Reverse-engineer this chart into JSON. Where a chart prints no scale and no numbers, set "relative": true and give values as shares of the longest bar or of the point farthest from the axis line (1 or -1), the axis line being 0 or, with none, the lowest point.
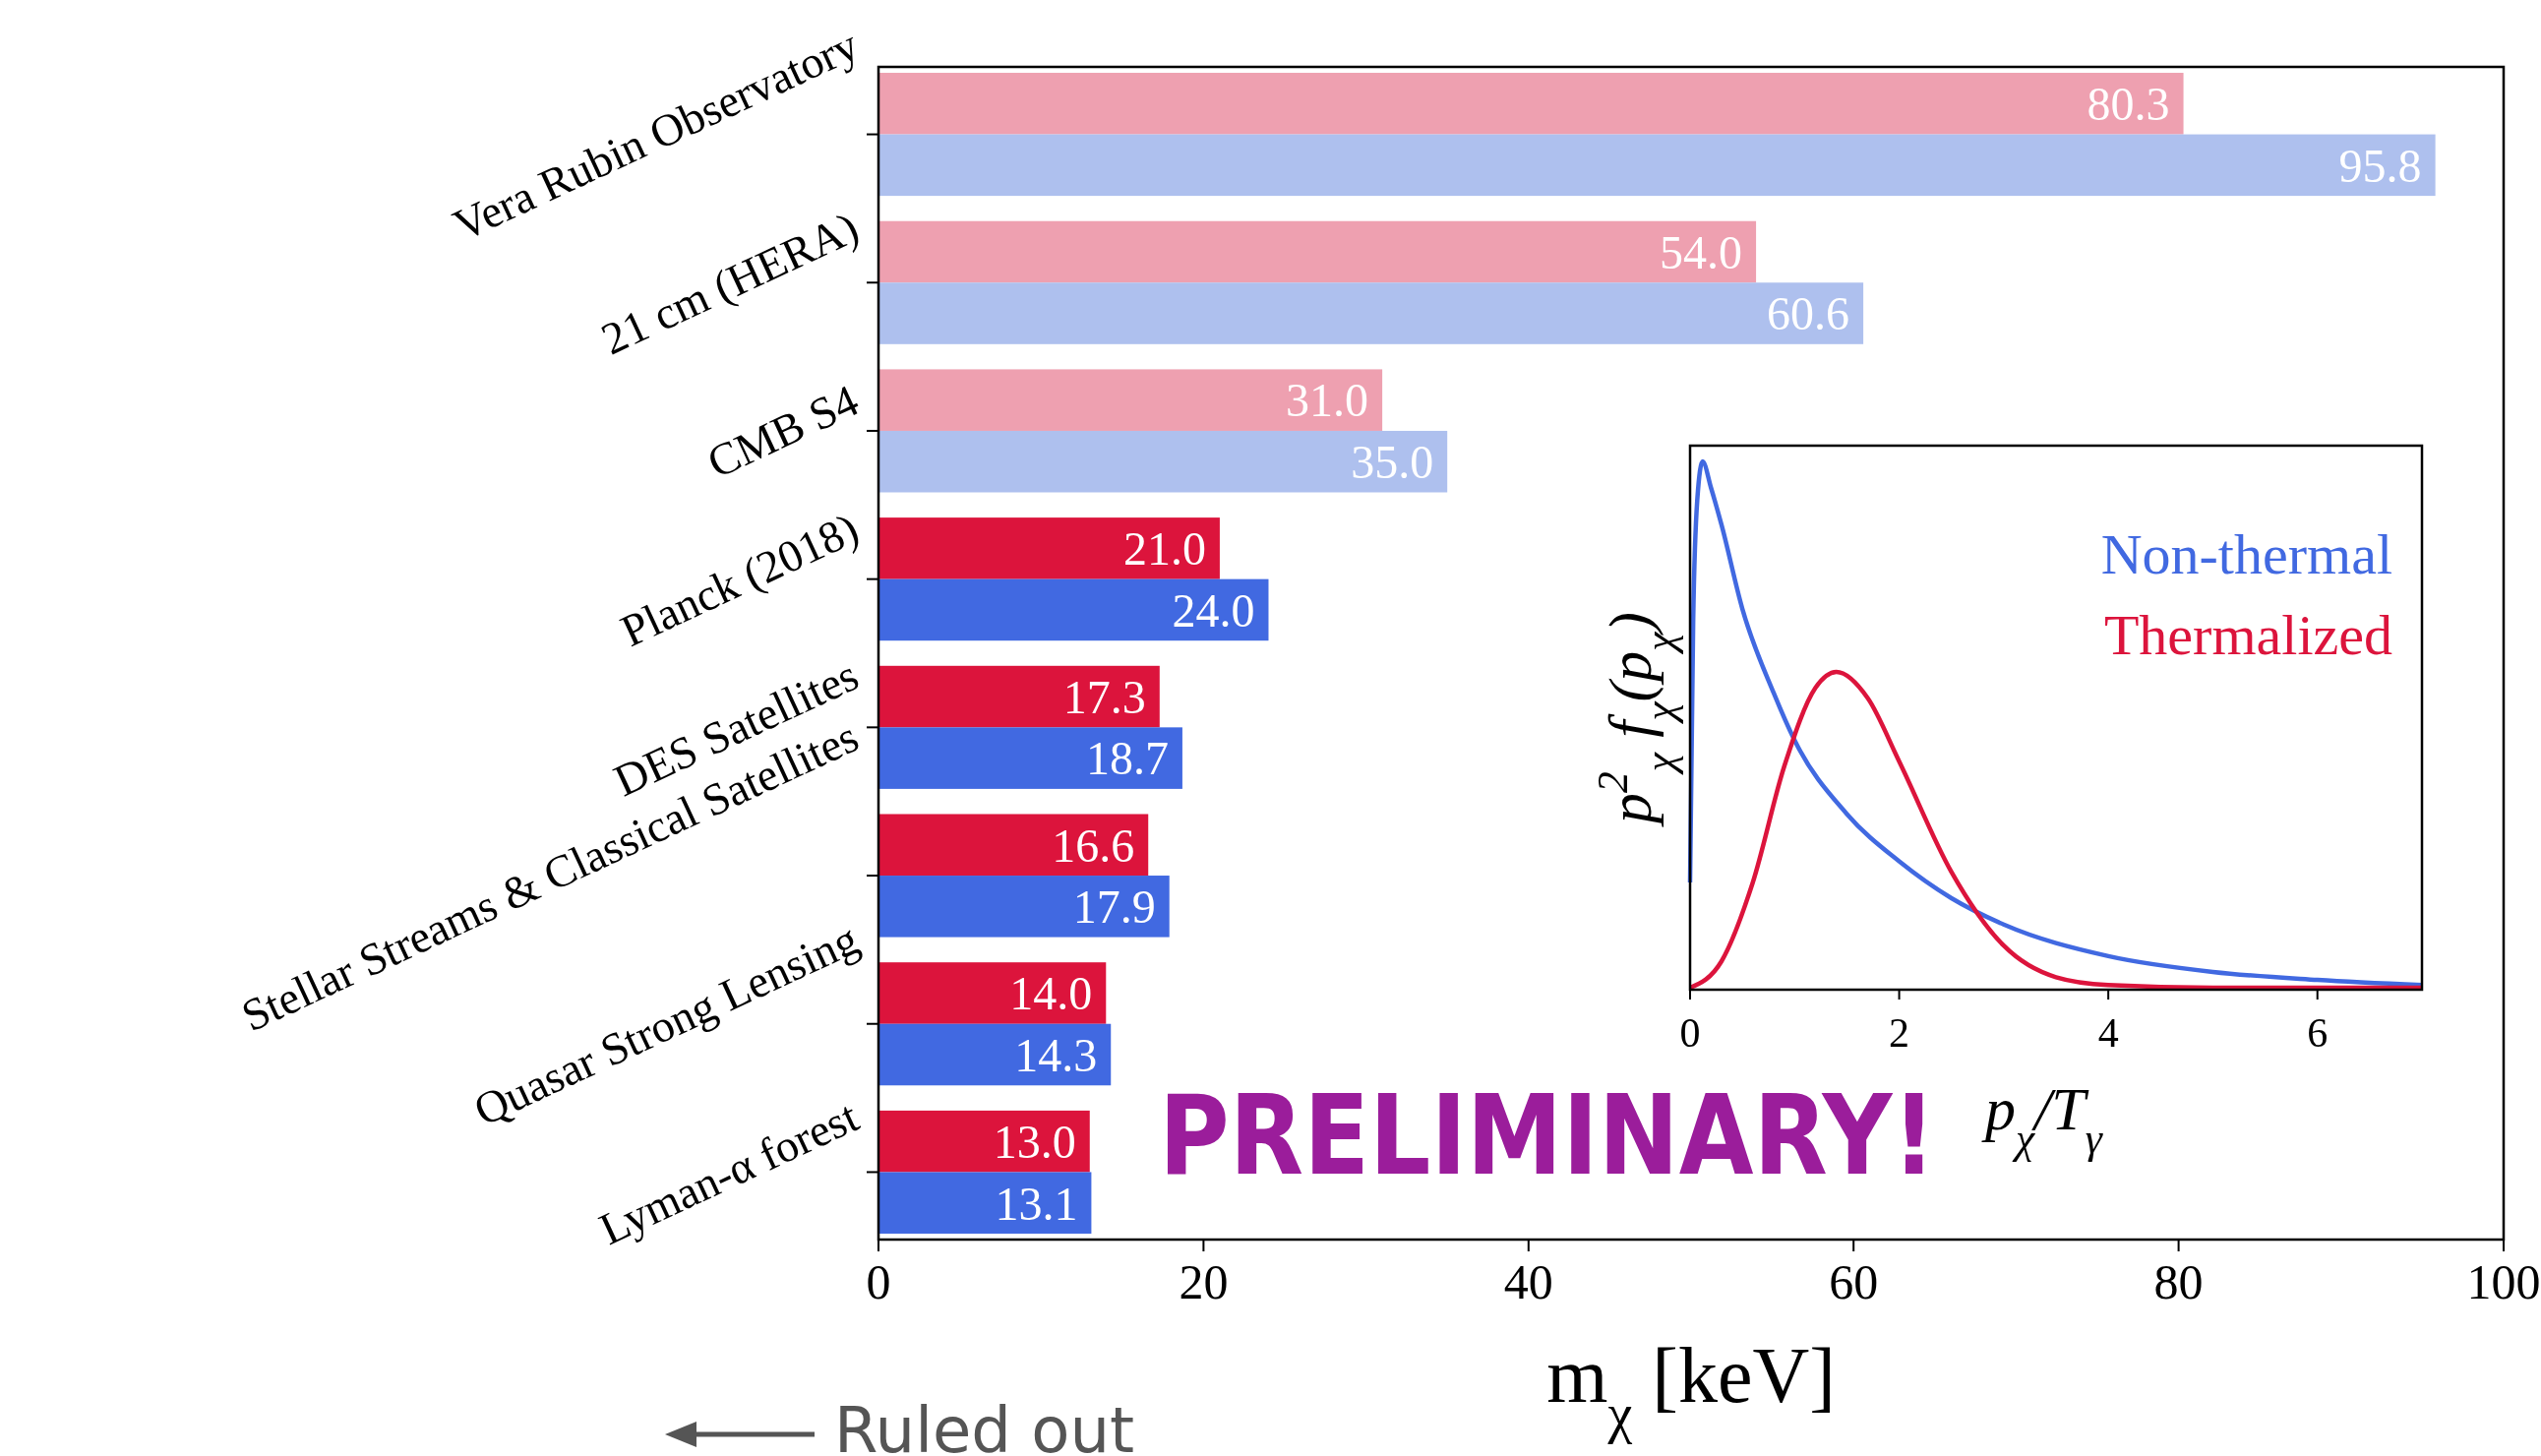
{
  "chart_data": [
    {
      "type": "bar",
      "orientation": "horizontal",
      "categories": [
        "Vera Rubin Observatory",
        "21 cm (HERA)",
        "CMB S4",
        "Planck (2018)",
        "DES Satellites",
        "Stellar Streams & Classical Satellites",
        "Quasar Strong Lensing",
        "Lyman-α forest"
      ],
      "series": [
        {
          "colors": [
            "#eea0b0",
            "#eea0b0",
            "#eea0b0",
            "#dc143c",
            "#dc143c",
            "#dc143c",
            "#dc143c",
            "#dc143c"
          ],
          "values": [
            80.3,
            54.0,
            31.0,
            21.0,
            17.3,
            16.6,
            14.0,
            13.0
          ],
          "value_labels": [
            "80.3",
            "54.0",
            "31.0",
            "21.0",
            "17.3",
            "16.6",
            "14.0",
            "13.0"
          ]
        },
        {
          "colors": [
            "#aec0ee",
            "#aec0ee",
            "#aec0ee",
            "#4169e1",
            "#4169e1",
            "#4169e1",
            "#4169e1",
            "#4169e1"
          ],
          "values": [
            95.8,
            60.6,
            35.0,
            24.0,
            18.7,
            17.9,
            14.3,
            13.1
          ],
          "value_labels": [
            "95.8",
            "60.6",
            "35.0",
            "24.0",
            "18.7",
            "17.9",
            "14.3",
            "13.1"
          ]
        }
      ],
      "xlabel": "m$_{χ}$ [keV]",
      "xlim": [
        0,
        100
      ],
      "xticks": [
        0,
        20,
        40,
        60,
        80,
        100
      ],
      "annotations": [
        "PRELIMINARY!",
        "Ruled out"
      ]
    },
    {
      "type": "line",
      "relative": true,
      "xlim": [
        0,
        7
      ],
      "xticks": [
        0,
        2,
        4,
        6
      ],
      "xlabel": "p$_{χ}$/T$_{γ}$",
      "ylabel": "p$^{2}$$_{χ}$ f$_{χ}$(p$_{χ}$)",
      "legend": "top right",
      "series": [
        {
          "name": "Non-thermal",
          "color": "#4169e1",
          "x": [
            0,
            0.03,
            0.07,
            0.12,
            0.2,
            0.3,
            0.5,
            0.8,
            1.0,
            1.5,
            2.0,
            2.5,
            3.0,
            4.0,
            5.0,
            6.0,
            7.0
          ],
          "values": [
            0.2,
            0.7,
            0.93,
            1.0,
            0.95,
            0.88,
            0.72,
            0.56,
            0.47,
            0.33,
            0.24,
            0.17,
            0.12,
            0.06,
            0.03,
            0.015,
            0.005
          ]
        },
        {
          "name": "Thermalized",
          "color": "#dc143c",
          "x": [
            0,
            0.3,
            0.6,
            0.9,
            1.2,
            1.4,
            1.7,
            2.0,
            2.5,
            3.0,
            3.5,
            4.0,
            5.0,
            7.0
          ],
          "values": [
            0,
            0.05,
            0.2,
            0.42,
            0.57,
            0.6,
            0.55,
            0.43,
            0.22,
            0.08,
            0.02,
            0.005,
            0,
            0
          ]
        }
      ]
    }
  ]
}
